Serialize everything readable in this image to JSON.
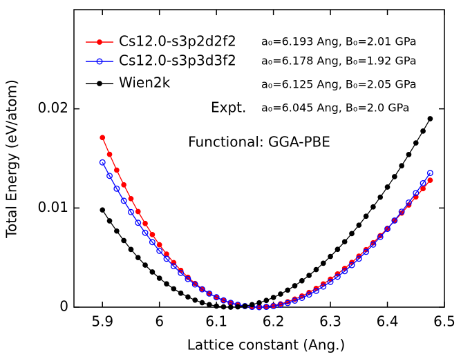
{
  "chart_data": {
    "type": "line",
    "xlabel": "Lattice constant (Ang.)",
    "ylabel": "Total Energy (eV/atom)",
    "xlim": [
      5.85,
      6.5
    ],
    "ylim": [
      0,
      0.03
    ],
    "xticks": [
      5.9,
      6,
      6.1,
      6.2,
      6.3,
      6.4,
      6.5
    ],
    "yticks": [
      0,
      0.01,
      0.02
    ],
    "x": [
      5.9,
      5.9125,
      5.925,
      5.9375,
      5.95,
      5.9625,
      5.975,
      5.9875,
      6.0,
      6.0125,
      6.025,
      6.0375,
      6.05,
      6.0625,
      6.075,
      6.0875,
      6.1,
      6.1125,
      6.125,
      6.1375,
      6.15,
      6.1625,
      6.175,
      6.1875,
      6.2,
      6.2125,
      6.225,
      6.2375,
      6.25,
      6.2625,
      6.275,
      6.2875,
      6.3,
      6.3125,
      6.325,
      6.3375,
      6.35,
      6.3625,
      6.375,
      6.3875,
      6.4,
      6.4125,
      6.425,
      6.4375,
      6.45,
      6.4625,
      6.475
    ],
    "series": [
      {
        "name": "Cs12.0-s3p2d2f2",
        "color": "#ff0000",
        "marker": "filled",
        "values": [
          0.0171,
          0.01541,
          0.01382,
          0.01234,
          0.01094,
          0.00964,
          0.00844,
          0.00732,
          0.00629,
          0.00535,
          0.00449,
          0.00371,
          0.00301,
          0.00239,
          0.00185,
          0.00138,
          0.00098,
          0.00066,
          0.0004,
          0.00021,
          8e-05,
          1e-05,
          0.0,
          6e-05,
          0.00017,
          0.00033,
          0.00054,
          0.00081,
          0.00112,
          0.00148,
          0.00189,
          0.00234,
          0.00282,
          0.00335,
          0.00391,
          0.00451,
          0.00514,
          0.0058,
          0.00649,
          0.00721,
          0.00795,
          0.00871,
          0.00949,
          0.0103,
          0.01112,
          0.01195,
          0.0128
        ]
      },
      {
        "name": "Cs12.0-s3p3d3f2",
        "color": "#0000ff",
        "marker": "open",
        "values": [
          0.0146,
          0.01324,
          0.01195,
          0.01073,
          0.00959,
          0.00851,
          0.0075,
          0.00656,
          0.00568,
          0.00488,
          0.00413,
          0.00346,
          0.00284,
          0.00229,
          0.0018,
          0.00137,
          0.001,
          0.00069,
          0.00044,
          0.00025,
          0.00011,
          3e-05,
          0.0,
          3e-05,
          0.00011,
          0.00024,
          0.00042,
          0.00066,
          0.00094,
          0.00127,
          0.00165,
          0.00208,
          0.00255,
          0.00307,
          0.00363,
          0.00424,
          0.00489,
          0.00558,
          0.00631,
          0.00708,
          0.00789,
          0.00874,
          0.00963,
          0.01055,
          0.01151,
          0.0125,
          0.01353
        ]
      },
      {
        "name": "Wien2k",
        "color": "#000000",
        "marker": "filled",
        "values": [
          0.0098,
          0.0087,
          0.00768,
          0.00672,
          0.00582,
          0.005,
          0.00424,
          0.00355,
          0.00292,
          0.00235,
          0.00185,
          0.00141,
          0.00103,
          0.00071,
          0.00045,
          0.00025,
          0.00011,
          3e-05,
          0.0,
          3e-05,
          0.00011,
          0.00025,
          0.00044,
          0.00068,
          0.00098,
          0.00132,
          0.00172,
          0.00216,
          0.00266,
          0.0032,
          0.00379,
          0.00443,
          0.00511,
          0.00583,
          0.0066,
          0.00742,
          0.00827,
          0.00917,
          0.01011,
          0.01109,
          0.01211,
          0.01316,
          0.01426,
          0.01539,
          0.01656,
          0.01776,
          0.019
        ]
      }
    ],
    "annotations": [
      "a₀=6.193 Ang, B₀=2.01 GPa",
      "a₀=6.178 Ang, B₀=1.92 GPa",
      "a₀=6.125 Ang, B₀=2.05 GPa",
      "a₀=6.045 Ang, B₀=2.0 GPa"
    ],
    "expt_label": "Expt.",
    "functional_label": "Functional: GGA-PBE"
  }
}
